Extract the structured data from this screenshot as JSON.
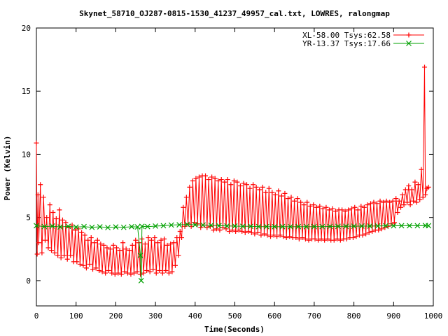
{
  "chart_data": {
    "type": "line",
    "title": "Skynet_58710_OJ287-0815-1530_41237_49957_cal.txt, LOWRES, ralongmap",
    "xlabel": "Time(Seconds)",
    "ylabel": "Power (Kelvin)",
    "xlim": [
      0,
      1000
    ],
    "ylim": [
      -2,
      20
    ],
    "xticks": [
      0,
      100,
      200,
      300,
      400,
      500,
      600,
      700,
      800,
      900,
      1000
    ],
    "yticks": [
      0,
      5,
      10,
      15,
      20
    ],
    "grid": false,
    "legend_position": "top-right",
    "series": [
      {
        "name": "XL-58.00 Tsys:62.58",
        "color": "#ff0000",
        "marker": "plus",
        "points": [
          [
            0,
            10.9
          ],
          [
            2,
            2.1
          ],
          [
            4,
            6.8
          ],
          [
            6,
            3.0
          ],
          [
            10,
            7.6
          ],
          [
            14,
            2.2
          ],
          [
            18,
            6.6
          ],
          [
            22,
            3.2
          ],
          [
            26,
            5.0
          ],
          [
            30,
            2.6
          ],
          [
            34,
            6.0
          ],
          [
            38,
            2.4
          ],
          [
            42,
            5.4
          ],
          [
            46,
            2.2
          ],
          [
            50,
            4.9
          ],
          [
            54,
            2.0
          ],
          [
            58,
            5.6
          ],
          [
            62,
            1.8
          ],
          [
            66,
            4.8
          ],
          [
            70,
            2.0
          ],
          [
            74,
            4.6
          ],
          [
            78,
            1.7
          ],
          [
            82,
            4.2
          ],
          [
            86,
            2.0
          ],
          [
            90,
            4.4
          ],
          [
            94,
            1.5
          ],
          [
            98,
            4.0
          ],
          [
            102,
            1.5
          ],
          [
            106,
            4.1
          ],
          [
            110,
            1.3
          ],
          [
            114,
            3.8
          ],
          [
            118,
            1.2
          ],
          [
            122,
            3.6
          ],
          [
            126,
            1.0
          ],
          [
            130,
            3.2
          ],
          [
            134,
            1.3
          ],
          [
            138,
            3.4
          ],
          [
            142,
            0.9
          ],
          [
            146,
            3.0
          ],
          [
            150,
            1.0
          ],
          [
            154,
            3.2
          ],
          [
            158,
            0.8
          ],
          [
            162,
            2.9
          ],
          [
            166,
            0.7
          ],
          [
            170,
            2.8
          ],
          [
            174,
            0.6
          ],
          [
            178,
            2.6
          ],
          [
            182,
            0.8
          ],
          [
            186,
            2.5
          ],
          [
            190,
            0.6
          ],
          [
            194,
            2.8
          ],
          [
            198,
            0.5
          ],
          [
            202,
            2.6
          ],
          [
            206,
            0.6
          ],
          [
            210,
            2.4
          ],
          [
            214,
            0.5
          ],
          [
            218,
            3.0
          ],
          [
            222,
            0.7
          ],
          [
            226,
            2.5
          ],
          [
            230,
            0.6
          ],
          [
            234,
            2.4
          ],
          [
            238,
            0.5
          ],
          [
            242,
            2.8
          ],
          [
            246,
            0.6
          ],
          [
            250,
            3.2
          ],
          [
            254,
            0.7
          ],
          [
            258,
            3.0
          ],
          [
            262,
            0.5
          ],
          [
            266,
            3.3
          ],
          [
            270,
            0.6
          ],
          [
            274,
            2.9
          ],
          [
            278,
            0.8
          ],
          [
            282,
            3.4
          ],
          [
            286,
            0.7
          ],
          [
            290,
            3.2
          ],
          [
            294,
            0.9
          ],
          [
            298,
            3.4
          ],
          [
            302,
            0.6
          ],
          [
            306,
            3.0
          ],
          [
            310,
            0.8
          ],
          [
            314,
            3.2
          ],
          [
            318,
            0.6
          ],
          [
            322,
            3.3
          ],
          [
            326,
            0.8
          ],
          [
            330,
            2.8
          ],
          [
            334,
            0.6
          ],
          [
            338,
            2.9
          ],
          [
            342,
            0.7
          ],
          [
            346,
            3.0
          ],
          [
            350,
            1.2
          ],
          [
            354,
            3.4
          ],
          [
            358,
            2.0
          ],
          [
            362,
            3.9
          ],
          [
            366,
            3.4
          ],
          [
            370,
            5.8
          ],
          [
            374,
            4.3
          ],
          [
            378,
            6.6
          ],
          [
            382,
            4.5
          ],
          [
            386,
            7.4
          ],
          [
            390,
            4.3
          ],
          [
            394,
            7.9
          ],
          [
            398,
            4.6
          ],
          [
            402,
            8.1
          ],
          [
            406,
            4.5
          ],
          [
            410,
            8.2
          ],
          [
            414,
            4.2
          ],
          [
            418,
            8.3
          ],
          [
            422,
            4.4
          ],
          [
            426,
            8.3
          ],
          [
            430,
            4.2
          ],
          [
            434,
            8.0
          ],
          [
            438,
            4.3
          ],
          [
            442,
            8.2
          ],
          [
            446,
            4.0
          ],
          [
            450,
            8.1
          ],
          [
            454,
            4.1
          ],
          [
            458,
            7.9
          ],
          [
            462,
            4.0
          ],
          [
            466,
            8.0
          ],
          [
            470,
            4.2
          ],
          [
            474,
            7.8
          ],
          [
            478,
            4.1
          ],
          [
            482,
            8.0
          ],
          [
            486,
            3.9
          ],
          [
            490,
            7.6
          ],
          [
            494,
            4.0
          ],
          [
            498,
            7.9
          ],
          [
            502,
            3.9
          ],
          [
            506,
            7.8
          ],
          [
            510,
            4.0
          ],
          [
            514,
            7.5
          ],
          [
            518,
            3.9
          ],
          [
            522,
            7.7
          ],
          [
            526,
            3.8
          ],
          [
            530,
            7.6
          ],
          [
            534,
            3.9
          ],
          [
            538,
            7.3
          ],
          [
            542,
            3.8
          ],
          [
            546,
            7.6
          ],
          [
            550,
            3.7
          ],
          [
            554,
            7.4
          ],
          [
            558,
            3.8
          ],
          [
            562,
            7.2
          ],
          [
            566,
            3.6
          ],
          [
            570,
            7.4
          ],
          [
            574,
            3.7
          ],
          [
            578,
            7.0
          ],
          [
            582,
            3.6
          ],
          [
            586,
            7.3
          ],
          [
            590,
            3.5
          ],
          [
            594,
            7.0
          ],
          [
            598,
            3.6
          ],
          [
            602,
            6.8
          ],
          [
            606,
            3.5
          ],
          [
            610,
            7.1
          ],
          [
            614,
            3.6
          ],
          [
            618,
            6.7
          ],
          [
            622,
            3.5
          ],
          [
            626,
            6.9
          ],
          [
            630,
            3.4
          ],
          [
            634,
            6.5
          ],
          [
            638,
            3.5
          ],
          [
            642,
            6.6
          ],
          [
            646,
            3.4
          ],
          [
            650,
            6.3
          ],
          [
            654,
            3.4
          ],
          [
            658,
            6.5
          ],
          [
            662,
            3.3
          ],
          [
            666,
            6.2
          ],
          [
            670,
            3.4
          ],
          [
            674,
            6.0
          ],
          [
            678,
            3.3
          ],
          [
            682,
            6.2
          ],
          [
            686,
            3.2
          ],
          [
            690,
            5.9
          ],
          [
            694,
            3.3
          ],
          [
            698,
            6.0
          ],
          [
            702,
            3.3
          ],
          [
            706,
            5.8
          ],
          [
            710,
            3.2
          ],
          [
            714,
            5.9
          ],
          [
            718,
            3.3
          ],
          [
            722,
            5.7
          ],
          [
            726,
            3.2
          ],
          [
            730,
            5.8
          ],
          [
            734,
            3.3
          ],
          [
            738,
            5.6
          ],
          [
            742,
            3.2
          ],
          [
            746,
            5.7
          ],
          [
            750,
            3.2
          ],
          [
            754,
            5.5
          ],
          [
            758,
            3.3
          ],
          [
            762,
            5.6
          ],
          [
            766,
            3.2
          ],
          [
            770,
            5.6
          ],
          [
            774,
            3.3
          ],
          [
            778,
            5.5
          ],
          [
            782,
            3.3
          ],
          [
            786,
            5.6
          ],
          [
            790,
            3.4
          ],
          [
            794,
            5.7
          ],
          [
            798,
            3.4
          ],
          [
            802,
            5.8
          ],
          [
            806,
            3.5
          ],
          [
            810,
            5.6
          ],
          [
            814,
            3.6
          ],
          [
            818,
            5.9
          ],
          [
            822,
            3.6
          ],
          [
            826,
            5.8
          ],
          [
            830,
            3.7
          ],
          [
            834,
            6.0
          ],
          [
            838,
            3.8
          ],
          [
            842,
            6.1
          ],
          [
            846,
            3.9
          ],
          [
            850,
            6.2
          ],
          [
            854,
            4.0
          ],
          [
            858,
            6.1
          ],
          [
            862,
            4.0
          ],
          [
            866,
            6.3
          ],
          [
            870,
            4.1
          ],
          [
            874,
            6.2
          ],
          [
            878,
            4.2
          ],
          [
            882,
            6.3
          ],
          [
            886,
            4.3
          ],
          [
            890,
            6.2
          ],
          [
            894,
            4.5
          ],
          [
            898,
            6.3
          ],
          [
            902,
            4.6
          ],
          [
            906,
            6.5
          ],
          [
            910,
            5.4
          ],
          [
            914,
            6.3
          ],
          [
            918,
            5.8
          ],
          [
            922,
            6.8
          ],
          [
            926,
            6.0
          ],
          [
            930,
            7.2
          ],
          [
            934,
            6.2
          ],
          [
            938,
            7.5
          ],
          [
            942,
            6.0
          ],
          [
            946,
            7.2
          ],
          [
            950,
            6.3
          ],
          [
            954,
            7.8
          ],
          [
            958,
            6.2
          ],
          [
            962,
            7.6
          ],
          [
            966,
            6.4
          ],
          [
            970,
            8.8
          ],
          [
            974,
            6.6
          ],
          [
            978,
            16.9
          ],
          [
            980,
            6.8
          ],
          [
            984,
            7.3
          ],
          [
            988,
            7.4
          ]
        ]
      },
      {
        "name": "YR-13.37 Tsys:17.66",
        "color": "#00a000",
        "marker": "cross",
        "points": [
          [
            0,
            4.35
          ],
          [
            20,
            4.28
          ],
          [
            40,
            4.32
          ],
          [
            60,
            4.25
          ],
          [
            80,
            4.3
          ],
          [
            100,
            4.24
          ],
          [
            120,
            4.28
          ],
          [
            140,
            4.22
          ],
          [
            160,
            4.26
          ],
          [
            180,
            4.2
          ],
          [
            200,
            4.25
          ],
          [
            220,
            4.22
          ],
          [
            240,
            4.27
          ],
          [
            255,
            4.25
          ],
          [
            262,
            2.0
          ],
          [
            264,
            0.0
          ],
          [
            266,
            4.3
          ],
          [
            280,
            4.28
          ],
          [
            300,
            4.32
          ],
          [
            320,
            4.35
          ],
          [
            340,
            4.4
          ],
          [
            360,
            4.42
          ],
          [
            380,
            4.45
          ],
          [
            400,
            4.42
          ],
          [
            420,
            4.4
          ],
          [
            440,
            4.38
          ],
          [
            460,
            4.35
          ],
          [
            480,
            4.33
          ],
          [
            500,
            4.32
          ],
          [
            520,
            4.3
          ],
          [
            540,
            4.3
          ],
          [
            560,
            4.28
          ],
          [
            580,
            4.28
          ],
          [
            600,
            4.27
          ],
          [
            620,
            4.28
          ],
          [
            640,
            4.27
          ],
          [
            660,
            4.28
          ],
          [
            680,
            4.27
          ],
          [
            700,
            4.28
          ],
          [
            720,
            4.28
          ],
          [
            740,
            4.29
          ],
          [
            760,
            4.3
          ],
          [
            780,
            4.3
          ],
          [
            800,
            4.31
          ],
          [
            820,
            4.32
          ],
          [
            840,
            4.32
          ],
          [
            860,
            4.33
          ],
          [
            880,
            4.34
          ],
          [
            900,
            4.34
          ],
          [
            920,
            4.35
          ],
          [
            940,
            4.35
          ],
          [
            960,
            4.35
          ],
          [
            980,
            4.36
          ],
          [
            988,
            4.35
          ]
        ]
      }
    ]
  }
}
